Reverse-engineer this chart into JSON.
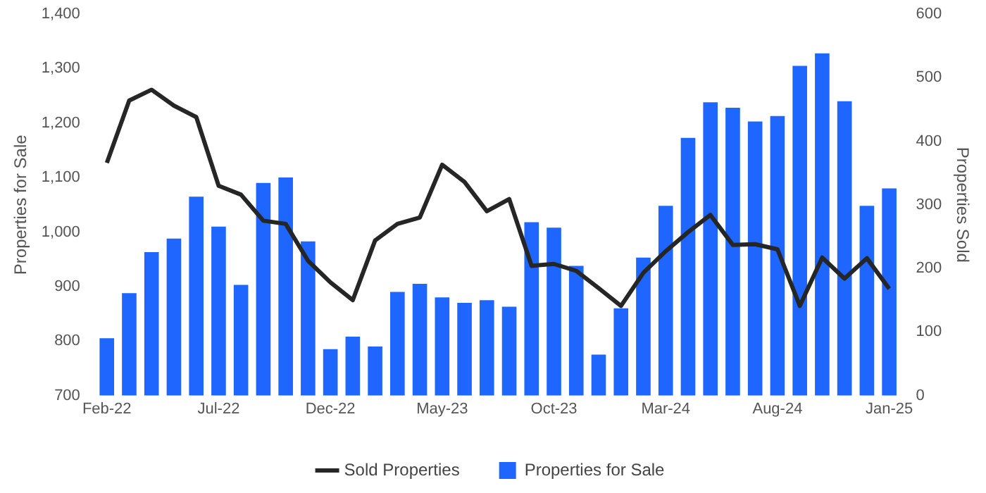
{
  "chart_data": {
    "type": "bar",
    "ylabel": "Properties for Sale",
    "y2label": "Properties Sold",
    "categories": [
      "Feb-22",
      null,
      null,
      null,
      null,
      "Jul-22",
      null,
      null,
      null,
      null,
      "Dec-22",
      null,
      null,
      null,
      null,
      "May-23",
      null,
      null,
      null,
      null,
      "Oct-23",
      null,
      null,
      null,
      null,
      "Mar-24",
      null,
      null,
      null,
      null,
      "Aug-24",
      null,
      null,
      null,
      null,
      "Jan-25"
    ],
    "series": [
      {
        "name": "Sold Properties",
        "type": "line",
        "axis": "y2",
        "color": "#262626",
        "values": [
          366,
          464,
          481,
          456,
          438,
          330,
          316,
          275,
          270,
          212,
          178,
          150,
          244,
          270,
          280,
          363,
          336,
          290,
          309,
          204,
          207,
          196,
          169,
          141,
          193,
          227,
          257,
          284,
          237,
          238,
          230,
          141,
          217,
          184,
          216,
          168
        ]
      },
      {
        "name": "Properties for Sale",
        "color": "#1f66ff",
        "values": [
          805,
          888,
          963,
          988,
          1065,
          1010,
          903,
          1090,
          1100,
          983,
          785,
          808,
          790,
          890,
          905,
          880,
          870,
          875,
          863,
          1018,
          1008,
          938,
          775,
          860,
          953,
          1048,
          1173,
          1238,
          1228,
          1203,
          1213,
          1305,
          1328,
          1240,
          1048,
          1080
        ]
      }
    ],
    "ylim": [
      700,
      1400
    ],
    "yticks": [
      700,
      800,
      900,
      {
        "value": 1000,
        "label": "1,000"
      },
      {
        "value": 1100,
        "label": "1,100"
      },
      {
        "value": 1200,
        "label": "1,200"
      },
      {
        "value": 1300,
        "label": "1,300"
      },
      {
        "value": 1400,
        "label": "1,400"
      }
    ],
    "y2lim": [
      0,
      600
    ],
    "y2ticks": [
      0,
      100,
      200,
      300,
      400,
      500,
      600
    ],
    "grid": false,
    "legend": "bottom",
    "marker": "none",
    "line_style": "solid"
  }
}
